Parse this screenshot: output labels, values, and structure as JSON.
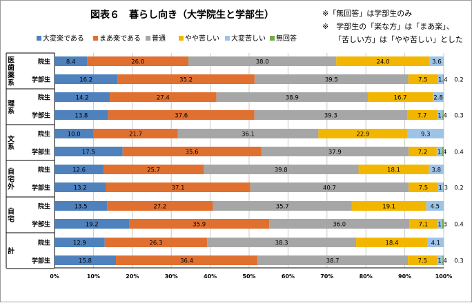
{
  "chart_data": {
    "type": "bar",
    "stacked": "percent",
    "orientation": "horizontal",
    "title": "図表６　暮らし向き（大学院生と学部生）",
    "notes": [
      "※「無回答」は学部生のみ",
      "※　学部生の「楽な方」は「まあ楽」、",
      "「苦しい方」は「やや苦しい」とした"
    ],
    "legend_position": "top",
    "xlim": [
      0,
      100
    ],
    "x_ticks": [
      "0%",
      "10%",
      "20%",
      "30%",
      "40%",
      "50%",
      "60%",
      "70%",
      "80%",
      "90%",
      "100%"
    ],
    "grid": true,
    "series": [
      {
        "name": "大変楽である",
        "color": "#4f81bd"
      },
      {
        "name": "まあ楽である",
        "color": "#e07030"
      },
      {
        "name": "普通",
        "color": "#a6a6a6"
      },
      {
        "name": "やや苦しい",
        "color": "#f2b600"
      },
      {
        "name": "大変苦しい",
        "color": "#9dc3e6"
      },
      {
        "name": "無回答",
        "color": "#70ad47"
      }
    ],
    "groups": [
      {
        "label": "医歯薬系",
        "rows": [
          {
            "label": "院生",
            "values": [
              8.4,
              26.0,
              38.0,
              24.0,
              3.6,
              0
            ],
            "labels": [
              "8.4",
              "26.0",
              "38.0",
              "24.0",
              "3.6",
              ""
            ]
          },
          {
            "label": "学部生",
            "values": [
              16.2,
              35.2,
              39.5,
              7.5,
              1.4,
              0.2
            ],
            "labels": [
              "16.2",
              "35.2",
              "39.5",
              "7.5",
              "1.4",
              "0.2"
            ]
          }
        ]
      },
      {
        "label": "理系",
        "rows": [
          {
            "label": "院生",
            "values": [
              14.2,
              27.4,
              38.9,
              16.7,
              2.8,
              0
            ],
            "labels": [
              "14.2",
              "27.4",
              "38.9",
              "16.7",
              "2.8",
              ""
            ]
          },
          {
            "label": "学部生",
            "values": [
              13.8,
              37.6,
              39.3,
              7.7,
              1.4,
              0.3
            ],
            "labels": [
              "13.8",
              "37.6",
              "39.3",
              "7.7",
              "1.4",
              "0.3"
            ]
          }
        ]
      },
      {
        "label": "文系",
        "rows": [
          {
            "label": "院生",
            "values": [
              10.0,
              21.7,
              36.1,
              22.9,
              9.3,
              0
            ],
            "labels": [
              "10.0",
              "21.7",
              "36.1",
              "22.9",
              "9.3",
              ""
            ]
          },
          {
            "label": "学部生",
            "values": [
              17.5,
              35.6,
              37.9,
              7.2,
              1.4,
              0.4
            ],
            "labels": [
              "17.5",
              "35.6",
              "37.9",
              "7.2",
              "1.4",
              "0.4"
            ]
          }
        ]
      },
      {
        "label": "自宅外",
        "rows": [
          {
            "label": "院生",
            "values": [
              12.6,
              25.7,
              39.8,
              18.1,
              3.8,
              0
            ],
            "labels": [
              "12.6",
              "25.7",
              "39.8",
              "18.1",
              "3.8",
              ""
            ]
          },
          {
            "label": "学部生",
            "values": [
              13.2,
              37.1,
              40.7,
              7.5,
              1.3,
              0.2
            ],
            "labels": [
              "13.2",
              "37.1",
              "40.7",
              "7.5",
              "1.3",
              "0.2"
            ]
          }
        ]
      },
      {
        "label": "自宅",
        "rows": [
          {
            "label": "院生",
            "values": [
              13.5,
              27.2,
              35.7,
              19.1,
              4.5,
              0
            ],
            "labels": [
              "13.5",
              "27.2",
              "35.7",
              "19.1",
              "4.5",
              ""
            ]
          },
          {
            "label": "学部生",
            "values": [
              19.2,
              35.9,
              36.0,
              7.1,
              1.3,
              0.4
            ],
            "labels": [
              "19.2",
              "35.9",
              "36.0",
              "7.1",
              "1.3",
              "0.4"
            ]
          }
        ]
      },
      {
        "label": "計",
        "rows": [
          {
            "label": "院生",
            "values": [
              12.9,
              26.3,
              38.3,
              18.4,
              4.1,
              0
            ],
            "labels": [
              "12.9",
              "26.3",
              "38.3",
              "18.4",
              "4.1",
              ""
            ]
          },
          {
            "label": "学部生",
            "values": [
              15.8,
              36.4,
              38.7,
              7.5,
              1.4,
              0.3
            ],
            "labels": [
              "15.8",
              "36.4",
              "38.7",
              "7.5",
              "1.4",
              "0.3"
            ]
          }
        ]
      }
    ]
  }
}
